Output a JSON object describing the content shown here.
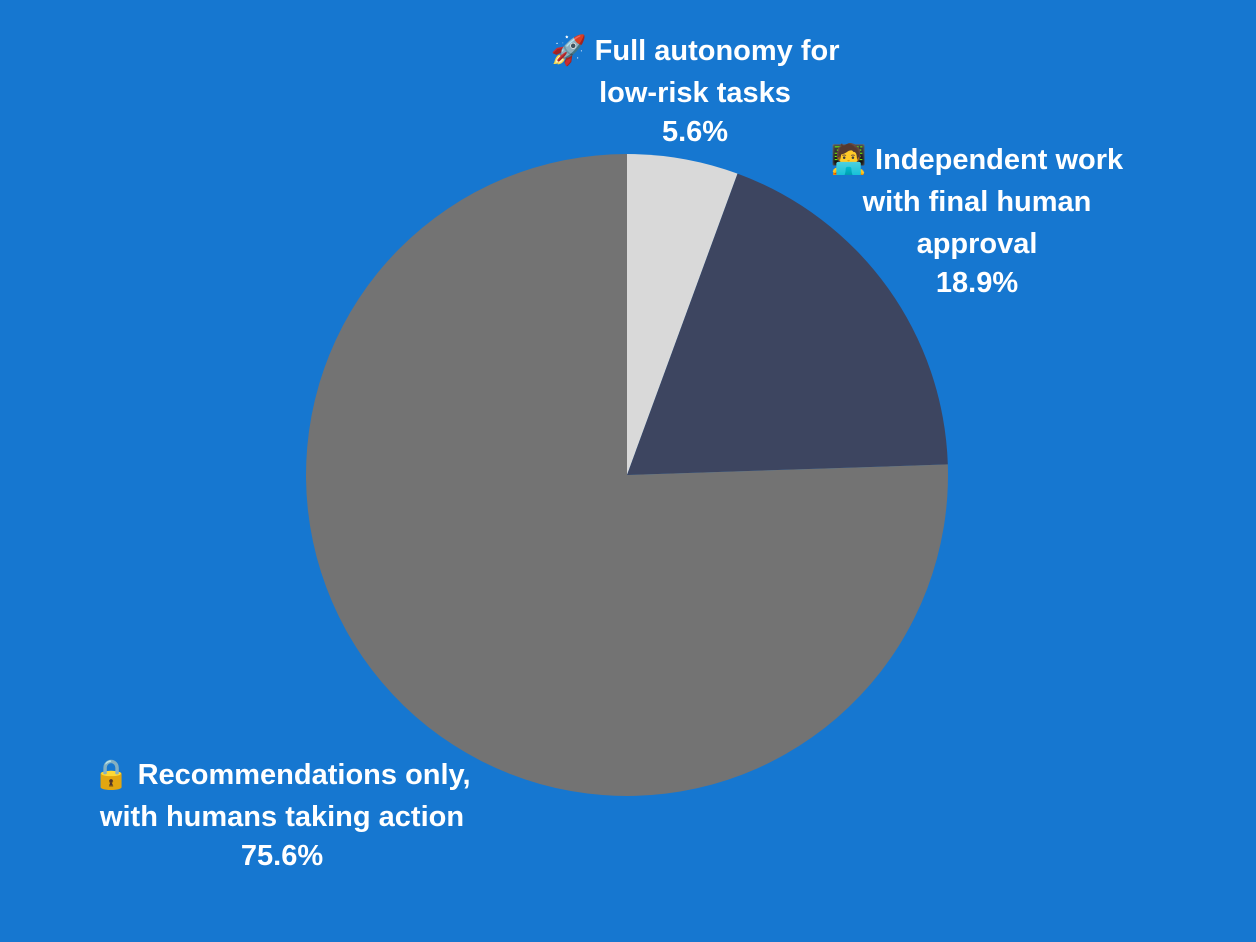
{
  "chart_data": {
    "type": "pie",
    "categories": [
      "🚀 Full autonomy for low-risk tasks",
      "🧑‍💻 Independent work with final human approval",
      "🔒 Recommendations only, with humans taking action"
    ],
    "values": [
      5.6,
      18.9,
      75.6
    ],
    "value_labels": [
      "5.6%",
      "18.9%",
      "75.6%"
    ],
    "colors": [
      "#d9d9d9",
      "#3d4560",
      "#737373"
    ]
  }
}
